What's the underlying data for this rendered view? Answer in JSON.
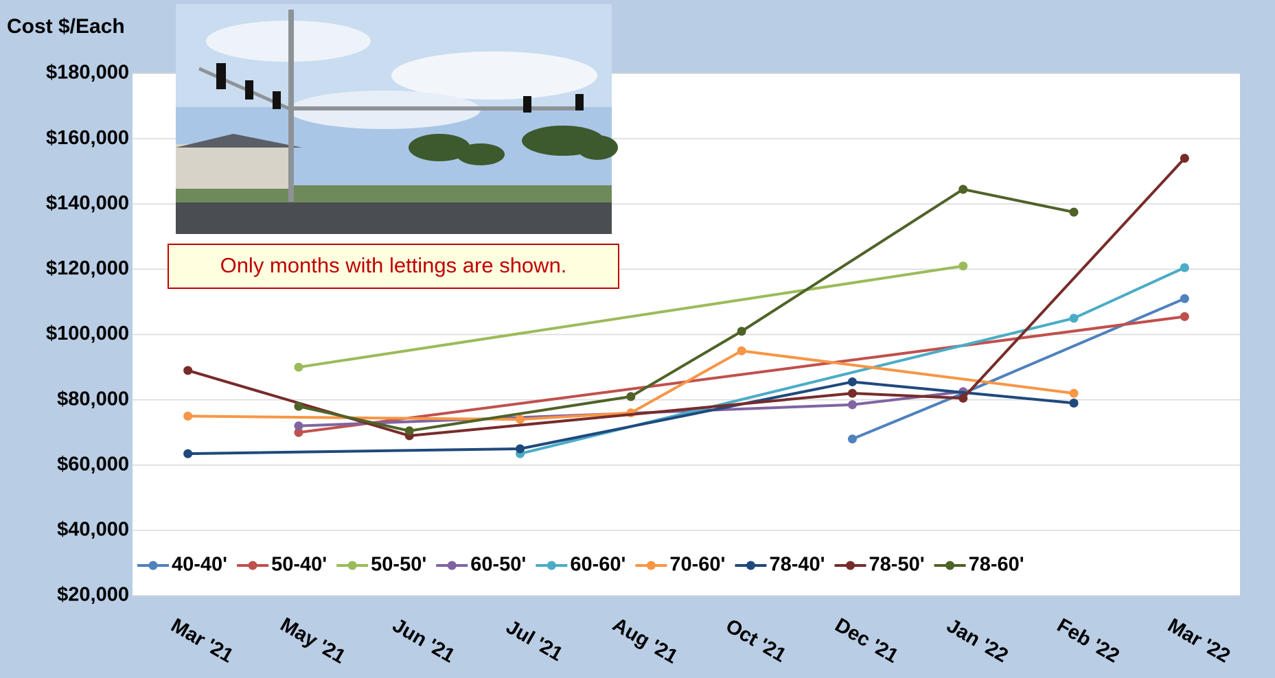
{
  "chart_data": {
    "type": "line",
    "y_axis_label": "Cost $/Each",
    "annotation": "Only months with lettings are shown.",
    "categories": [
      "Mar '21",
      "May '21",
      "Jun '21",
      "Jul '21",
      "Aug '21",
      "Oct '21",
      "Dec '21",
      "Jan '22",
      "Feb '22",
      "Mar '22"
    ],
    "series": [
      {
        "name": "40-40'",
        "color": "#4f81bd",
        "values": [
          null,
          null,
          null,
          null,
          null,
          null,
          68000,
          82000,
          null,
          111000
        ]
      },
      {
        "name": "50-40'",
        "color": "#c0504d",
        "values": [
          null,
          70000,
          null,
          null,
          null,
          null,
          null,
          null,
          null,
          105500
        ]
      },
      {
        "name": "50-50'",
        "color": "#9bbb59",
        "values": [
          null,
          90000,
          null,
          null,
          null,
          null,
          null,
          121000,
          null,
          null
        ]
      },
      {
        "name": "60-50'",
        "color": "#8064a2",
        "values": [
          null,
          72000,
          null,
          null,
          null,
          null,
          78500,
          82500,
          null,
          null
        ]
      },
      {
        "name": "60-60'",
        "color": "#4bacc6",
        "values": [
          null,
          null,
          null,
          63500,
          null,
          null,
          null,
          null,
          105000,
          120500
        ]
      },
      {
        "name": "70-60'",
        "color": "#f79646",
        "values": [
          75000,
          null,
          null,
          74000,
          76000,
          95000,
          null,
          null,
          82000,
          null
        ]
      },
      {
        "name": "78-40'",
        "color": "#1f497d",
        "values": [
          63500,
          null,
          null,
          65000,
          null,
          null,
          85500,
          null,
          79000,
          null
        ]
      },
      {
        "name": "78-50'",
        "color": "#772c2a",
        "values": [
          89000,
          null,
          69000,
          null,
          null,
          null,
          82000,
          80500,
          null,
          154000
        ]
      },
      {
        "name": "78-60'",
        "color": "#4f6228",
        "values": [
          null,
          78000,
          70500,
          null,
          81000,
          101000,
          null,
          144500,
          137500,
          null
        ]
      }
    ],
    "connect_gaps": true,
    "ylim": [
      20000,
      180000
    ],
    "yticks": [
      {
        "value": 20000,
        "label": "$20,000"
      },
      {
        "value": 40000,
        "label": "$40,000"
      },
      {
        "value": 60000,
        "label": "$60,000"
      },
      {
        "value": 80000,
        "label": "$80,000"
      },
      {
        "value": 100000,
        "label": "$100,000"
      },
      {
        "value": 120000,
        "label": "$120,000"
      },
      {
        "value": 140000,
        "label": "$140,000"
      },
      {
        "value": 160000,
        "label": "$160,000"
      },
      {
        "value": 180000,
        "label": "$180,000"
      }
    ],
    "grid": true,
    "legend": "bottom"
  }
}
